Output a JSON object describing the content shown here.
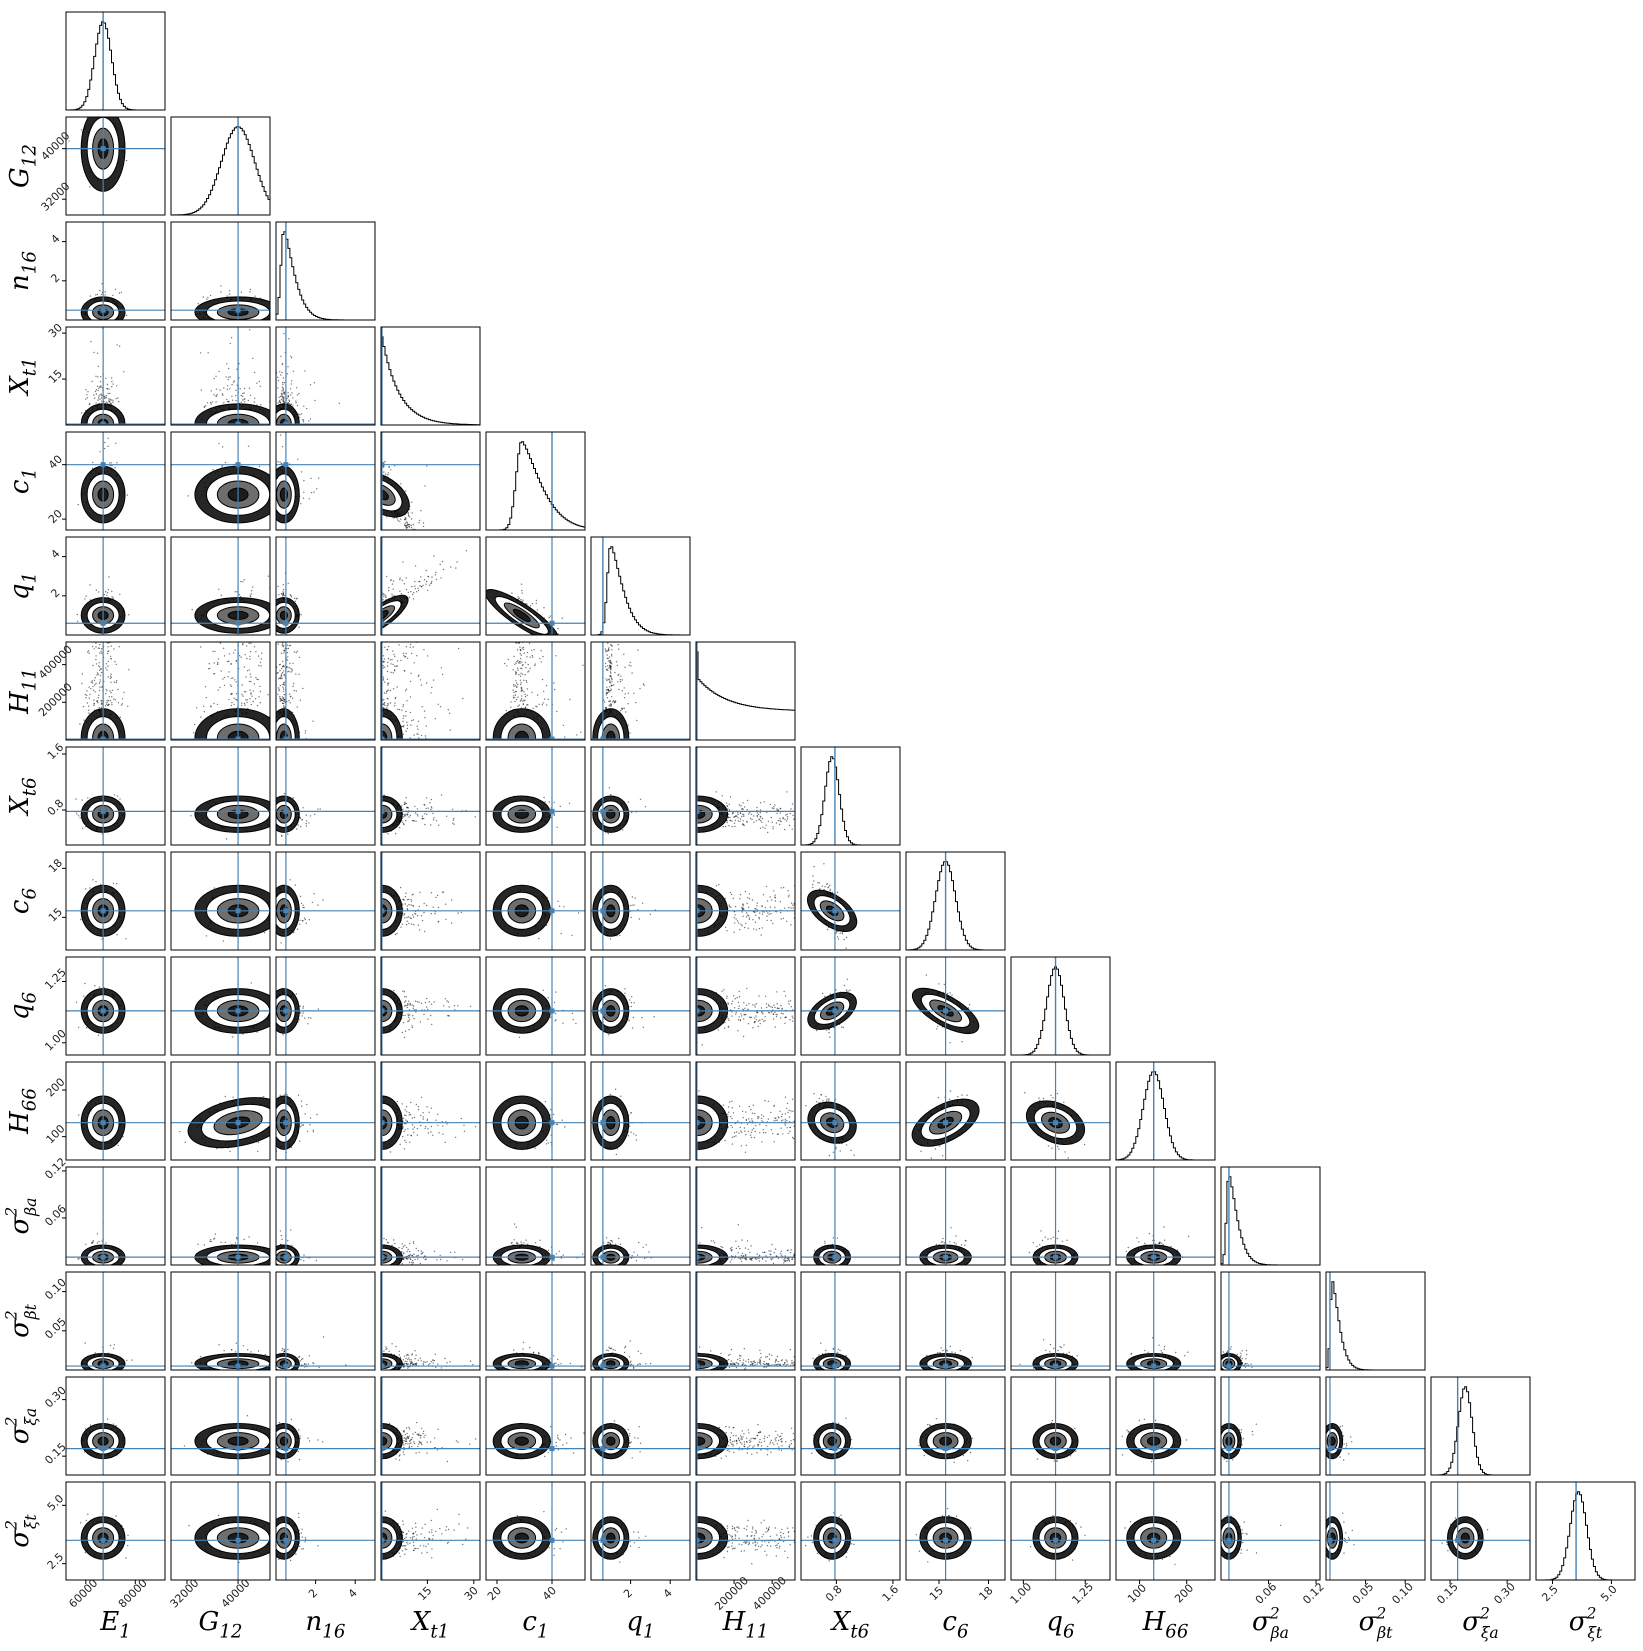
{
  "chart_data": {
    "type": "scatter",
    "subtype": "corner-plot",
    "title": "",
    "truth_line_color": "#4682b4",
    "histogram_color": "#000000",
    "density_color": "#000000",
    "n_params": 15,
    "parameters": [
      {
        "symbol": "E",
        "sub": "1",
        "sup": "",
        "range": [
          52000,
          92000
        ],
        "truth": 67000,
        "mode": 67000,
        "width": 3400,
        "shape": "normal",
        "ticks": [
          60000,
          80000
        ],
        "tick_labels": [
          "60000",
          "80000"
        ]
      },
      {
        "symbol": "G",
        "sub": "12",
        "sup": "",
        "range": [
          29500,
          45000
        ],
        "truth": 40000,
        "mode": 40000,
        "width": 2600,
        "shape": "normal",
        "ticks": [
          32000,
          40000
        ],
        "tick_labels": [
          "32000",
          "40000"
        ]
      },
      {
        "symbol": "n",
        "sub": "16",
        "sup": "",
        "range": [
          0,
          5
        ],
        "truth": 0.5,
        "mode": 0.4,
        "width": 0.3,
        "shape": "skew",
        "ticks": [
          2,
          4
        ],
        "tick_labels": [
          "2",
          "4"
        ]
      },
      {
        "symbol": "X",
        "sub": "t1",
        "sup": "",
        "range": [
          0,
          32
        ],
        "truth": 0.3,
        "mode": 0.4,
        "width": 2.5,
        "shape": "decay",
        "ticks": [
          15,
          30
        ],
        "tick_labels": [
          "15",
          "30"
        ]
      },
      {
        "symbol": "c",
        "sub": "1",
        "sup": "",
        "range": [
          16,
          52
        ],
        "truth": 40,
        "mode": 29,
        "width": 4,
        "shape": "skew",
        "ticks": [
          20,
          40
        ],
        "tick_labels": [
          "20",
          "40"
        ]
      },
      {
        "symbol": "q",
        "sub": "1",
        "sup": "",
        "range": [
          0,
          5
        ],
        "truth": 0.6,
        "mode": 1.0,
        "width": 0.35,
        "shape": "skew",
        "ticks": [
          2,
          4
        ],
        "tick_labels": [
          "2",
          "4"
        ]
      },
      {
        "symbol": "H",
        "sub": "11",
        "sup": "",
        "range": [
          0,
          520000
        ],
        "truth": 5000,
        "mode": 10000,
        "width": 60000,
        "shape": "broad",
        "ticks": [
          200000,
          400000
        ],
        "tick_labels": [
          "200000",
          "400000"
        ]
      },
      {
        "symbol": "X",
        "sub": "t6",
        "sup": "",
        "range": [
          0.3,
          1.7
        ],
        "truth": 0.78,
        "mode": 0.74,
        "width": 0.1,
        "shape": "normal",
        "ticks": [
          0.8,
          1.6
        ],
        "tick_labels": [
          "0.8",
          "1.6"
        ]
      },
      {
        "symbol": "c",
        "sub": "6",
        "sup": "",
        "range": [
          13,
          19
        ],
        "truth": 15.4,
        "mode": 15.4,
        "width": 0.6,
        "shape": "normal",
        "ticks": [
          15,
          18
        ],
        "tick_labels": [
          "15",
          "18"
        ]
      },
      {
        "symbol": "q",
        "sub": "6",
        "sup": "",
        "range": [
          0.95,
          1.35
        ],
        "truth": 1.13,
        "mode": 1.13,
        "width": 0.035,
        "shape": "normal",
        "ticks": [
          1.0,
          1.25
        ],
        "tick_labels": [
          "1.00",
          "1.25"
        ]
      },
      {
        "symbol": "H",
        "sub": "66",
        "sup": "",
        "range": [
          50,
          260
        ],
        "truth": 130,
        "mode": 130,
        "width": 22,
        "shape": "normal",
        "ticks": [
          100,
          200
        ],
        "tick_labels": [
          "100",
          "200"
        ]
      },
      {
        "symbol": "σ",
        "sub": "βa",
        "sup": "2",
        "range": [
          0,
          0.125
        ],
        "truth": 0.01,
        "mode": 0.01,
        "width": 0.006,
        "shape": "skew",
        "ticks": [
          0.06,
          0.12
        ],
        "tick_labels": [
          "0.06",
          "0.12"
        ]
      },
      {
        "symbol": "σ",
        "sub": "βt",
        "sup": "2",
        "range": [
          0,
          0.125
        ],
        "truth": 0.005,
        "mode": 0.008,
        "width": 0.005,
        "shape": "skew",
        "ticks": [
          0.05,
          0.1
        ],
        "tick_labels": [
          "0.05",
          "0.10"
        ]
      },
      {
        "symbol": "σ",
        "sub": "ξa",
        "sup": "2",
        "range": [
          0.1,
          0.36
        ],
        "truth": 0.17,
        "mode": 0.19,
        "width": 0.018,
        "shape": "normal",
        "ticks": [
          0.15,
          0.3
        ],
        "tick_labels": [
          "0.15",
          "0.30"
        ]
      },
      {
        "symbol": "σ",
        "sub": "ξt",
        "sup": "2",
        "range": [
          1.8,
          6.0
        ],
        "truth": 3.5,
        "mode": 3.6,
        "width": 0.35,
        "shape": "normal",
        "ticks": [
          2.5,
          5.0
        ],
        "tick_labels": [
          "2.5",
          "5.0"
        ]
      }
    ],
    "correlations": [
      {
        "i": 3,
        "j": 4,
        "rho": -0.85
      },
      {
        "i": 3,
        "j": 5,
        "rho": 0.9
      },
      {
        "i": 4,
        "j": 5,
        "rho": -0.85
      },
      {
        "i": 7,
        "j": 8,
        "rho": -0.9
      },
      {
        "i": 7,
        "j": 9,
        "rho": 0.75
      },
      {
        "i": 8,
        "j": 9,
        "rho": -0.75
      },
      {
        "i": 7,
        "j": 10,
        "rho": -0.6
      },
      {
        "i": 8,
        "j": 10,
        "rho": 0.7
      },
      {
        "i": 9,
        "j": 10,
        "rho": -0.6
      },
      {
        "i": 1,
        "j": 10,
        "rho": 0.3
      }
    ]
  }
}
